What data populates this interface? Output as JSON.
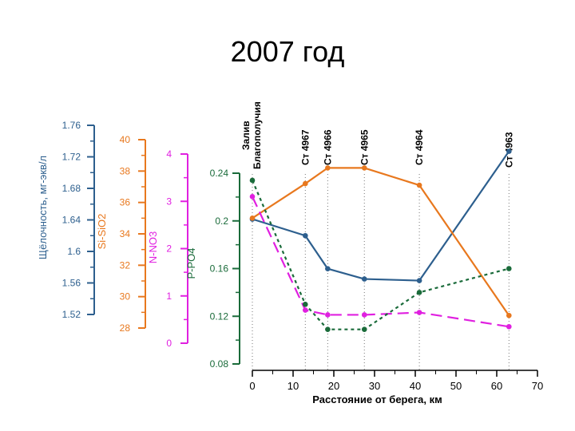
{
  "title": "2007 год",
  "chart_data": {
    "type": "line",
    "title": "2007 год",
    "xlabel": "Расстояние от берега, км",
    "xlim": [
      0,
      70
    ],
    "x_ticks": [
      "0",
      "10",
      "20",
      "30",
      "40",
      "50",
      "60",
      "70"
    ],
    "axes": [
      {
        "id": "alk",
        "label": "Щёлочность, мг-экв/л",
        "color": "#2d5f8e",
        "ylim": [
          1.52,
          1.76
        ],
        "ticks": [
          "1.76",
          "1.72",
          "1.68",
          "1.64",
          "1.6",
          "1.56",
          "1.52"
        ]
      },
      {
        "id": "si",
        "label": "Si-SiO2",
        "color": "#e8781e",
        "ylim": [
          28,
          40
        ],
        "ticks": [
          "40",
          "38",
          "36",
          "34",
          "32",
          "30",
          "28"
        ]
      },
      {
        "id": "n",
        "label": "N-NO3",
        "color": "#e020e0",
        "ylim": [
          0,
          4
        ],
        "ticks": [
          "4",
          "3",
          "2",
          "1",
          "0"
        ]
      },
      {
        "id": "p",
        "label": "P-PO4",
        "color": "#1a6b3a",
        "ylim": [
          0.08,
          0.24
        ],
        "ticks": [
          "0.24",
          "0.2",
          "0.16",
          "0.12",
          "0.08"
        ]
      }
    ],
    "stations": [
      {
        "label": "Залив Благополучия",
        "x": 0
      },
      {
        "label": "Ст 4967",
        "x": 13
      },
      {
        "label": "Ст 4966",
        "x": 18.5
      },
      {
        "label": "Ст 4965",
        "x": 27.5
      },
      {
        "label": "Ст 4964",
        "x": 41
      },
      {
        "label": "Ст 4963",
        "x": 63
      }
    ],
    "series": [
      {
        "axis": "alk",
        "style": "solid",
        "x": [
          0,
          13,
          18.5,
          27.5,
          41,
          63
        ],
        "values": [
          1.641,
          1.62,
          1.578,
          1.565,
          1.563,
          1.727
        ]
      },
      {
        "axis": "si",
        "style": "solid",
        "x": [
          0,
          13,
          18.5,
          27.5,
          41,
          63
        ],
        "values": [
          35.0,
          37.2,
          38.2,
          38.2,
          37.1,
          28.8
        ]
      },
      {
        "axis": "n",
        "style": "long-dash",
        "x": [
          0,
          13,
          18.5,
          27.5,
          41,
          63
        ],
        "values": [
          3.1,
          0.7,
          0.6,
          0.6,
          0.65,
          0.35
        ]
      },
      {
        "axis": "p",
        "style": "dotted",
        "x": [
          0,
          13,
          18.5,
          27.5,
          41,
          63
        ],
        "values": [
          0.234,
          0.13,
          0.109,
          0.109,
          0.14,
          0.16
        ]
      }
    ]
  }
}
